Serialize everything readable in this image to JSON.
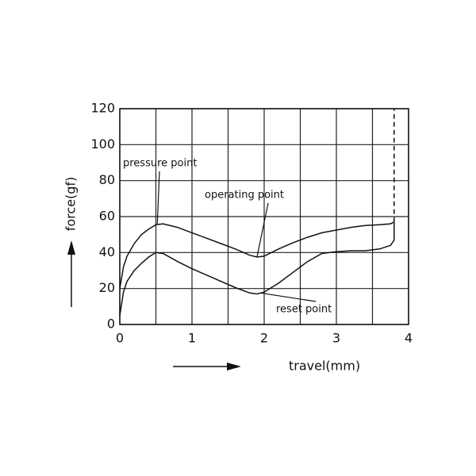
{
  "chart_data": {
    "type": "line",
    "xlabel": "travel(mm)",
    "ylabel": "force(gf)",
    "x": [
      0,
      0.05,
      0.1,
      0.2,
      0.3,
      0.4,
      0.5,
      0.6,
      0.8,
      1.0,
      1.2,
      1.4,
      1.6,
      1.8,
      1.9,
      2.0,
      2.2,
      2.4,
      2.6,
      2.8,
      3.0,
      3.2,
      3.4,
      3.6,
      3.75,
      3.8,
      3.8
    ],
    "series": [
      {
        "color": "#111111",
        "dashed": false,
        "values": [
          20,
          32,
          38,
          45,
          50,
          53,
          55.5,
          56,
          54,
          51,
          48,
          45,
          42,
          38.5,
          37.5,
          38,
          42,
          45.5,
          48.5,
          51,
          52.5,
          54,
          55,
          55.5,
          56,
          57,
          null
        ]
      },
      {
        "color": "#111111",
        "dashed": false,
        "values": [
          5,
          18,
          24,
          30,
          34,
          37.5,
          40,
          39.5,
          35,
          31,
          27.5,
          24,
          20.5,
          17.5,
          17,
          18,
          23,
          29,
          35,
          39.5,
          40.5,
          41,
          41,
          42,
          44,
          47,
          57
        ]
      },
      {
        "color": "#111111",
        "dashed": true,
        "values": [
          null,
          null,
          null,
          null,
          null,
          null,
          null,
          null,
          null,
          null,
          null,
          null,
          null,
          null,
          null,
          null,
          null,
          null,
          null,
          null,
          null,
          null,
          null,
          null,
          null,
          57,
          120
        ]
      }
    ],
    "xlim": [
      0,
      4
    ],
    "ylim": [
      0,
      120
    ],
    "xticks": [
      0,
      1,
      2,
      3,
      4
    ],
    "yticks": [
      0,
      20,
      40,
      60,
      80,
      100,
      120
    ],
    "x_gridlines": [
      0.5,
      1.5,
      2.5,
      3.5
    ],
    "grid": true,
    "annotations": [
      {
        "text": "pressure point",
        "x": 0.52,
        "y": 56
      },
      {
        "text": "operating point",
        "x": 1.9,
        "y": 37.5
      },
      {
        "text": "reset point",
        "x": 1.95,
        "y": 17.5
      }
    ]
  }
}
